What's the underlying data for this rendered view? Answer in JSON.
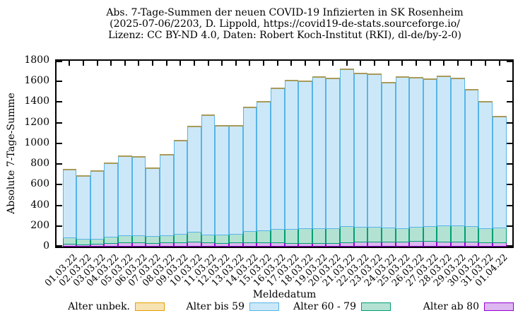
{
  "title": {
    "line1": "Abs. 7-Tage-Summen der neuen COVID-19 Infizierten in SK Rosenheim",
    "line2": "(2025-07-06/2203, D. Lippold, https://covid19-de-stats.sourceforge.io/",
    "line3": "Lizenz: CC BY-ND 4.0, Daten: Robert Koch-Institut (RKI), dl-de/by-2-0)"
  },
  "axes": {
    "ylabel": "Absolute 7-Tage-Summe",
    "xlabel": "Meldedatum",
    "yticks": [
      0,
      200,
      400,
      600,
      800,
      1000,
      1200,
      1400,
      1600,
      1800
    ],
    "ylim": [
      0,
      1800
    ]
  },
  "legend": [
    {
      "label": "Alter unbek.",
      "stroke": "#e69f00",
      "fill": "#f7e2b2"
    },
    {
      "label": "Alter bis 59",
      "stroke": "#56b4e9",
      "fill": "#cce8f8"
    },
    {
      "label": "Alter 60 - 79",
      "stroke": "#009e73",
      "fill": "#b3e2d3"
    },
    {
      "label": "Alter ab 80",
      "stroke": "#9400d3",
      "fill": "#ddb7f0"
    }
  ],
  "chart_data": {
    "type": "bar",
    "stacked": true,
    "title": "Abs. 7-Tage-Summen der neuen COVID-19 Infizierten in SK Rosenheim",
    "xlabel": "Meldedatum",
    "ylabel": "Absolute 7-Tage-Summe",
    "ylim": [
      0,
      1800
    ],
    "grid": false,
    "legend_position": "bottom",
    "categories": [
      "01.03.22",
      "02.03.22",
      "03.03.22",
      "04.03.22",
      "05.03.22",
      "06.03.22",
      "07.03.22",
      "08.03.22",
      "09.03.22",
      "10.03.22",
      "11.03.22",
      "12.03.22",
      "13.03.22",
      "14.03.22",
      "15.03.22",
      "16.03.22",
      "17.03.22",
      "18.03.22",
      "19.03.22",
      "20.03.22",
      "21.03.22",
      "22.03.22",
      "23.03.22",
      "24.03.22",
      "25.03.22",
      "26.03.22",
      "27.03.22",
      "28.03.22",
      "29.03.22",
      "30.03.22",
      "31.03.22",
      "01.04.22"
    ],
    "series": [
      {
        "name": "Alter ab 80",
        "stroke": "#9400d3",
        "fill": "#ddb7f0",
        "values": [
          30,
          25,
          28,
          40,
          42,
          44,
          40,
          42,
          45,
          50,
          42,
          38,
          42,
          46,
          44,
          42,
          36,
          36,
          38,
          38,
          47,
          49,
          49,
          51,
          51,
          56,
          56,
          53,
          51,
          51,
          47,
          47
        ]
      },
      {
        "name": "Alter 60 - 79",
        "stroke": "#009e73",
        "fill": "#b3e2d3",
        "values": [
          60,
          52,
          51,
          60,
          71,
          67,
          64,
          69,
          84,
          94,
          80,
          80,
          87,
          105,
          114,
          133,
          142,
          144,
          146,
          146,
          153,
          144,
          144,
          138,
          129,
          140,
          144,
          158,
          158,
          149,
          137,
          142
        ]
      },
      {
        "name": "Alter bis 59",
        "stroke": "#56b4e9",
        "fill": "#cce8f8",
        "values": [
          655,
          608,
          651,
          705,
          762,
          759,
          656,
          779,
          901,
          1021,
          1148,
          1052,
          1041,
          1199,
          1242,
          1360,
          1432,
          1420,
          1456,
          1446,
          1520,
          1487,
          1477,
          1401,
          1465,
          1439,
          1420,
          1439,
          1421,
          1320,
          1216,
          1071
        ]
      },
      {
        "name": "Alter unbek.",
        "stroke": "#e69f00",
        "fill": "#f7e2b2",
        "zero_top_edge": "#a89a5a",
        "values": [
          0,
          0,
          0,
          0,
          0,
          0,
          0,
          0,
          0,
          0,
          0,
          0,
          0,
          0,
          0,
          0,
          0,
          0,
          0,
          0,
          0,
          0,
          0,
          0,
          0,
          0,
          0,
          0,
          0,
          0,
          0,
          0
        ]
      },
      {
        "name": "totals (sum)",
        "stroke": "",
        "fill": "",
        "values": [
          745,
          685,
          730,
          805,
          875,
          870,
          760,
          890,
          1030,
          1165,
          1270,
          1170,
          1170,
          1350,
          1400,
          1535,
          1610,
          1600,
          1640,
          1630,
          1720,
          1680,
          1670,
          1590,
          1645,
          1635,
          1620,
          1650,
          1630,
          1520,
          1400,
          1260
        ]
      }
    ]
  }
}
